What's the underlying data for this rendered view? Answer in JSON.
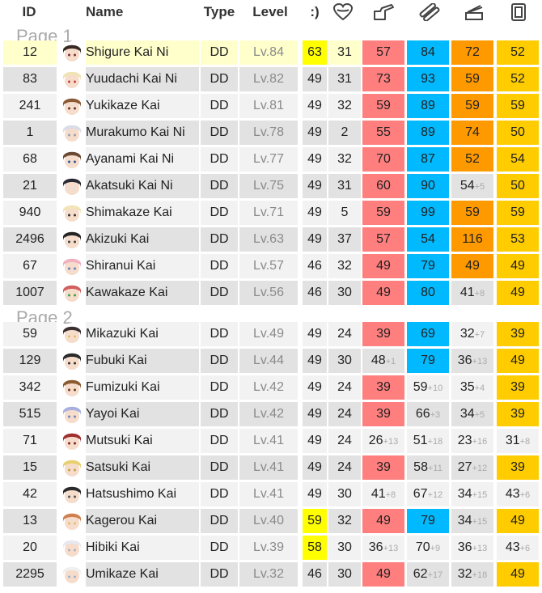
{
  "columns": {
    "id": "ID",
    "name": "Name",
    "type": "Type",
    "level": "Level",
    "morale": ":)",
    "icon_hp": "heart-icon",
    "icon_fp": "firepower-icon",
    "icon_tp": "torpedo-icon",
    "icon_aa": "antiair-icon",
    "icon_ar": "armor-icon"
  },
  "pages": [
    {
      "label": "Page 1",
      "rows": [
        {
          "id": "12",
          "name": "Shigure Kai Ni",
          "type": "DD",
          "lv": "Lv.",
          "lvn": "84",
          "morale": "63",
          "morale_hl": true,
          "hp": "31",
          "fp": "57",
          "fp_inc": "",
          "tp": "84",
          "tp_inc": "",
          "aa": "72",
          "aa_inc": "",
          "ar": "52",
          "ar_inc": "",
          "fp_max": true,
          "tp_max": true,
          "aa_max": true,
          "ar_max": true,
          "hl": true,
          "hair": "#3a2a25",
          "skin": "#f6dccb",
          "accent": "#7a3030"
        },
        {
          "id": "83",
          "name": "Yuudachi Kai Ni",
          "type": "DD",
          "lv": "Lv.",
          "lvn": "82",
          "morale": "49",
          "hp": "31",
          "fp": "73",
          "fp_inc": "",
          "tp": "93",
          "tp_inc": "",
          "aa": "59",
          "aa_inc": "",
          "ar": "52",
          "ar_inc": "",
          "fp_max": true,
          "tp_max": true,
          "aa_max": true,
          "ar_max": true,
          "hair": "#f0e3b5",
          "skin": "#f6dccb",
          "accent": "#c04040"
        },
        {
          "id": "241",
          "name": "Yukikaze Kai",
          "type": "DD",
          "lv": "Lv.",
          "lvn": "81",
          "morale": "49",
          "hp": "32",
          "fp": "59",
          "fp_inc": "",
          "tp": "89",
          "tp_inc": "",
          "aa": "59",
          "aa_inc": "",
          "ar": "59",
          "ar_inc": "",
          "fp_max": true,
          "tp_max": true,
          "aa_max": true,
          "ar_max": true,
          "hair": "#8a5a35",
          "skin": "#f6dccb",
          "accent": "#5a3a25"
        },
        {
          "id": "1",
          "name": "Murakumo Kai Ni",
          "type": "DD",
          "lv": "Lv.",
          "lvn": "78",
          "morale": "49",
          "hp": "2",
          "fp": "55",
          "fp_inc": "",
          "tp": "89",
          "tp_inc": "",
          "aa": "74",
          "aa_inc": "",
          "ar": "50",
          "ar_inc": "",
          "fp_max": true,
          "tp_max": true,
          "aa_max": true,
          "ar_max": true,
          "hair": "#d8dde8",
          "skin": "#f6dccb",
          "accent": "#9aa0b0"
        },
        {
          "id": "68",
          "name": "Ayanami Kai Ni",
          "type": "DD",
          "lv": "Lv.",
          "lvn": "77",
          "morale": "49",
          "hp": "32",
          "fp": "70",
          "fp_inc": "",
          "tp": "87",
          "tp_inc": "",
          "aa": "52",
          "aa_inc": "",
          "ar": "54",
          "ar_inc": "",
          "fp_max": true,
          "tp_max": true,
          "aa_max": true,
          "ar_max": true,
          "hair": "#6a4a35",
          "skin": "#f6dccb",
          "accent": "#2a5aa0"
        },
        {
          "id": "21",
          "name": "Akatsuki Kai Ni",
          "type": "DD",
          "lv": "Lv.",
          "lvn": "75",
          "morale": "49",
          "hp": "31",
          "fp": "60",
          "fp_inc": "",
          "tp": "90",
          "tp_inc": "",
          "aa": "54",
          "aa_inc": "+5",
          "ar": "50",
          "ar_inc": "",
          "fp_max": true,
          "tp_max": true,
          "aa_max": false,
          "ar_max": true,
          "hair": "#2a2a35",
          "skin": "#f6dccb",
          "accent": "#e0e0e0"
        },
        {
          "id": "940",
          "name": "Shimakaze Kai",
          "type": "DD",
          "lv": "Lv.",
          "lvn": "71",
          "morale": "49",
          "hp": "5",
          "fp": "59",
          "fp_inc": "",
          "tp": "99",
          "tp_inc": "",
          "aa": "59",
          "aa_inc": "",
          "ar": "59",
          "ar_inc": "",
          "fp_max": true,
          "tp_max": true,
          "aa_max": true,
          "ar_max": true,
          "hair": "#f3e4b8",
          "skin": "#f6dccb",
          "accent": "#303030"
        },
        {
          "id": "2496",
          "name": "Akizuki Kai",
          "type": "DD",
          "lv": "Lv.",
          "lvn": "63",
          "morale": "49",
          "hp": "37",
          "fp": "57",
          "fp_inc": "",
          "tp": "54",
          "tp_inc": "",
          "aa": "116",
          "aa_inc": "",
          "ar": "53",
          "ar_inc": "",
          "fp_max": true,
          "tp_max": true,
          "aa_max": true,
          "ar_max": true,
          "hair": "#252525",
          "skin": "#f6dccb",
          "accent": "#404040"
        },
        {
          "id": "67",
          "name": "Shiranui Kai",
          "type": "DD",
          "lv": "Lv.",
          "lvn": "57",
          "morale": "46",
          "hp": "32",
          "fp": "49",
          "fp_inc": "",
          "tp": "79",
          "tp_inc": "",
          "aa": "49",
          "aa_inc": "",
          "ar": "49",
          "ar_inc": "",
          "fp_max": true,
          "tp_max": true,
          "aa_max": true,
          "ar_max": true,
          "hair": "#f0b0c0",
          "skin": "#f6dccb",
          "accent": "#6080c0"
        },
        {
          "id": "1007",
          "name": "Kawakaze Kai",
          "type": "DD",
          "lv": "Lv.",
          "lvn": "56",
          "morale": "46",
          "hp": "30",
          "fp": "49",
          "fp_inc": "",
          "tp": "80",
          "tp_inc": "",
          "aa": "41",
          "aa_inc": "+8",
          "ar": "49",
          "ar_inc": "",
          "fp_max": true,
          "tp_max": true,
          "aa_max": false,
          "ar_max": true,
          "hair": "#d06060",
          "skin": "#f6dccb",
          "accent": "#3aa040"
        }
      ]
    },
    {
      "label": "Page 2",
      "rows": [
        {
          "id": "59",
          "name": "Mikazuki Kai",
          "type": "DD",
          "lv": "Lv.",
          "lvn": "49",
          "morale": "49",
          "hp": "24",
          "fp": "39",
          "fp_inc": "",
          "tp": "69",
          "tp_inc": "",
          "aa": "32",
          "aa_inc": "+7",
          "ar": "39",
          "ar_inc": "",
          "fp_max": true,
          "tp_max": true,
          "aa_max": false,
          "ar_max": true,
          "hair": "#3a3030",
          "skin": "#f6dccb",
          "accent": "#e0c070"
        },
        {
          "id": "129",
          "name": "Fubuki Kai",
          "type": "DD",
          "lv": "Lv.",
          "lvn": "44",
          "morale": "49",
          "hp": "30",
          "fp": "48",
          "fp_inc": "+1",
          "tp": "79",
          "tp_inc": "",
          "aa": "36",
          "aa_inc": "+13",
          "ar": "49",
          "ar_inc": "",
          "fp_max": false,
          "tp_max": true,
          "aa_max": false,
          "ar_max": true,
          "hair": "#2a2a2a",
          "skin": "#f6dccb",
          "accent": "#2a2a2a"
        },
        {
          "id": "342",
          "name": "Fumizuki Kai",
          "type": "DD",
          "lv": "Lv.",
          "lvn": "42",
          "morale": "49",
          "hp": "24",
          "fp": "39",
          "fp_inc": "",
          "tp": "59",
          "tp_inc": "+10",
          "aa": "35",
          "aa_inc": "+4",
          "ar": "39",
          "ar_inc": "",
          "fp_max": true,
          "tp_max": false,
          "aa_max": false,
          "ar_max": true,
          "hair": "#8a5a30",
          "skin": "#f6dccb",
          "accent": "#6a4020"
        },
        {
          "id": "515",
          "name": "Yayoi Kai",
          "type": "DD",
          "lv": "Lv.",
          "lvn": "42",
          "morale": "49",
          "hp": "24",
          "fp": "39",
          "fp_inc": "",
          "tp": "66",
          "tp_inc": "+3",
          "aa": "34",
          "aa_inc": "+5",
          "ar": "39",
          "ar_inc": "",
          "fp_max": true,
          "tp_max": false,
          "aa_max": false,
          "ar_max": true,
          "hair": "#a8b0e0",
          "skin": "#f6dccb",
          "accent": "#7080c0"
        },
        {
          "id": "71",
          "name": "Mutsuki Kai",
          "type": "DD",
          "lv": "Lv.",
          "lvn": "41",
          "morale": "49",
          "hp": "24",
          "fp": "26",
          "fp_inc": "+13",
          "tp": "51",
          "tp_inc": "+18",
          "aa": "23",
          "aa_inc": "+16",
          "ar": "31",
          "ar_inc": "+8",
          "fp_max": false,
          "tp_max": false,
          "aa_max": false,
          "ar_max": false,
          "hair": "#a03030",
          "skin": "#f6dccb",
          "accent": "#802020"
        },
        {
          "id": "15",
          "name": "Satsuki Kai",
          "type": "DD",
          "lv": "Lv.",
          "lvn": "41",
          "morale": "49",
          "hp": "24",
          "fp": "39",
          "fp_inc": "",
          "tp": "58",
          "tp_inc": "+11",
          "aa": "27",
          "aa_inc": "+12",
          "ar": "39",
          "ar_inc": "",
          "fp_max": true,
          "tp_max": false,
          "aa_max": false,
          "ar_max": true,
          "hair": "#e8d070",
          "skin": "#f6dccb",
          "accent": "#c0a040"
        },
        {
          "id": "42",
          "name": "Hatsushimo Kai",
          "type": "DD",
          "lv": "Lv.",
          "lvn": "41",
          "morale": "49",
          "hp": "30",
          "fp": "41",
          "fp_inc": "+8",
          "tp": "67",
          "tp_inc": "+12",
          "aa": "34",
          "aa_inc": "+15",
          "ar": "43",
          "ar_inc": "+6",
          "fp_max": false,
          "tp_max": false,
          "aa_max": false,
          "ar_max": false,
          "hair": "#2a2a2a",
          "skin": "#f6dccb",
          "accent": "#505050"
        },
        {
          "id": "13",
          "name": "Kagerou Kai",
          "type": "DD",
          "lv": "Lv.",
          "lvn": "40",
          "morale": "59",
          "morale_hl": true,
          "hp": "32",
          "fp": "49",
          "fp_inc": "",
          "tp": "79",
          "tp_inc": "",
          "aa": "34",
          "aa_inc": "+15",
          "ar": "49",
          "ar_inc": "",
          "fp_max": true,
          "tp_max": true,
          "aa_max": false,
          "ar_max": true,
          "hair": "#d08050",
          "skin": "#f6dccb",
          "accent": "#e0c070"
        },
        {
          "id": "20",
          "name": "Hibiki Kai",
          "type": "DD",
          "lv": "Lv.",
          "lvn": "39",
          "morale": "58",
          "morale_hl": true,
          "hp": "30",
          "fp": "36",
          "fp_inc": "+13",
          "tp": "70",
          "tp_inc": "+9",
          "aa": "36",
          "aa_inc": "+13",
          "ar": "43",
          "ar_inc": "+6",
          "fp_max": false,
          "tp_max": false,
          "aa_max": false,
          "ar_max": false,
          "hair": "#e8e8f0",
          "skin": "#f6dccb",
          "accent": "#b0b0c0"
        },
        {
          "id": "2295",
          "name": "Umikaze Kai",
          "type": "DD",
          "lv": "Lv.",
          "lvn": "32",
          "morale": "46",
          "hp": "30",
          "fp": "49",
          "fp_inc": "",
          "tp": "62",
          "tp_inc": "+17",
          "aa": "32",
          "aa_inc": "+18",
          "ar": "49",
          "ar_inc": "",
          "fp_max": true,
          "tp_max": false,
          "aa_max": false,
          "ar_max": true,
          "hair": "#f0f0f0",
          "skin": "#f6dccb",
          "accent": "#9ab0d0"
        }
      ]
    }
  ],
  "colors": {
    "fp": "#ff7f7f",
    "tp": "#00b9ff",
    "aa": "#ff9900",
    "ar": "#ffcc00",
    "morale_hl": "#ffff00",
    "row_hl": "#ffffcc"
  }
}
